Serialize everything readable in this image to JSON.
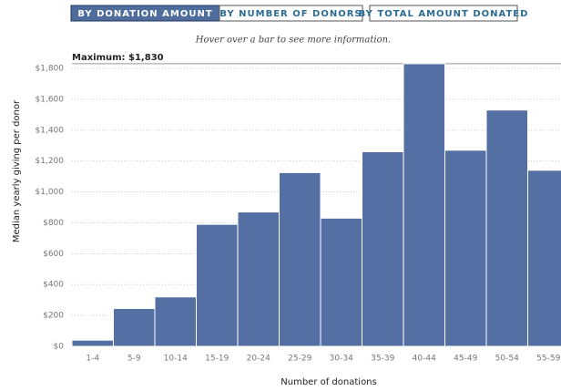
{
  "tabs": [
    "BY DONATION AMOUNT",
    "BY NUMBER OF DONORS",
    "BY TOTAL AMOUNT DONATED"
  ],
  "active_tab": 0,
  "chart_data": {
    "type": "bar",
    "subtitle": "Hover over a bar to see more information.",
    "x_label": "Number of donations",
    "y_label": "Median yearly giving per donor",
    "annotation": {
      "value": 1830,
      "label": "Maximum: $1,830"
    },
    "categories": [
      "1-4",
      "5-9",
      "10-14",
      "15-19",
      "20-24",
      "25-29",
      "30-34",
      "35-39",
      "40-44",
      "45-49",
      "50-54",
      "55-59"
    ],
    "values": [
      40,
      245,
      320,
      790,
      870,
      1125,
      830,
      1260,
      1830,
      1270,
      1530,
      1140
    ],
    "color": "#536fa3",
    "ylim": [
      0,
      1800
    ],
    "yticks": [
      {
        "value": 0,
        "label": "$0"
      },
      {
        "value": 200,
        "label": "$200"
      },
      {
        "value": 400,
        "label": "$400"
      },
      {
        "value": 600,
        "label": "$600"
      },
      {
        "value": 800,
        "label": "$800"
      },
      {
        "value": 1000,
        "label": "$1,000"
      },
      {
        "value": 1200,
        "label": "$1,200"
      },
      {
        "value": 1400,
        "label": "$1,400"
      },
      {
        "value": 1600,
        "label": "$1,600"
      },
      {
        "value": 1800,
        "label": "$1,800"
      }
    ],
    "grid": true
  }
}
